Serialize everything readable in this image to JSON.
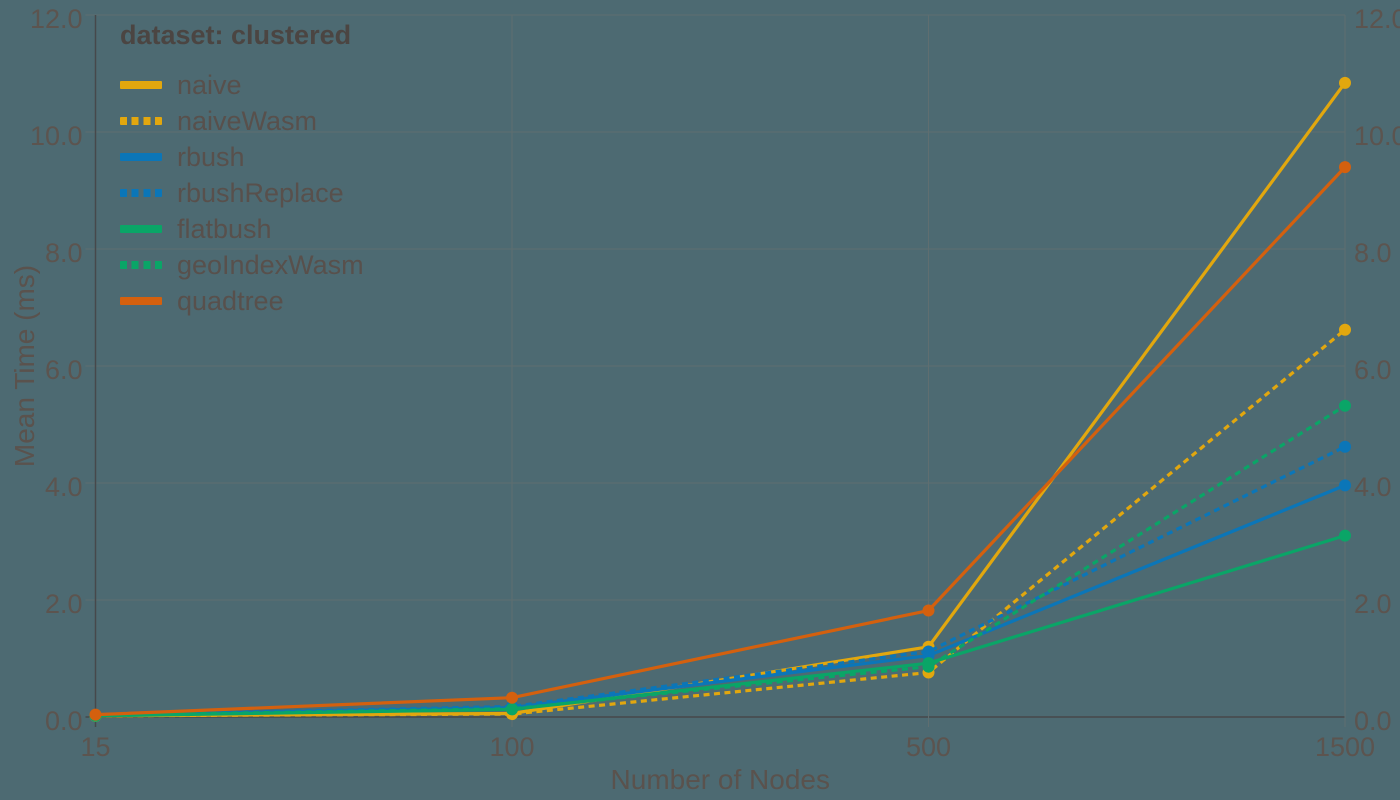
{
  "chart_data": {
    "type": "line",
    "title": "",
    "legend_title": "dataset: clustered",
    "xlabel": "Number of Nodes",
    "ylabel": "Mean Time (ms)",
    "x_categories": [
      "15",
      "100",
      "500",
      "1500"
    ],
    "y_tick_values": [
      0,
      2,
      4,
      6,
      8,
      10,
      12
    ],
    "y_tick_labels": [
      "0.0",
      "2.0",
      "4.0",
      "6.0",
      "8.0",
      "10.0",
      "12.0"
    ],
    "ylim": [
      0,
      12
    ],
    "grid": true,
    "legend_position": "top-left",
    "y_axis_labels_sides": "left and right",
    "marker": "circle",
    "series": [
      {
        "name": "naive",
        "color": "#E2A70E",
        "line_style": "solid",
        "values": [
          0.02,
          0.06,
          1.2,
          10.84
        ]
      },
      {
        "name": "naiveWasm",
        "color": "#E2A70E",
        "line_style": "dashed",
        "values": [
          0.02,
          0.05,
          0.76,
          6.62
        ]
      },
      {
        "name": "rbush",
        "color": "#0B76B8",
        "line_style": "solid",
        "values": [
          0.03,
          0.16,
          1.05,
          3.96
        ]
      },
      {
        "name": "rbushReplace",
        "color": "#0B76B8",
        "line_style": "dashed",
        "values": [
          0.03,
          0.18,
          1.12,
          4.62
        ]
      },
      {
        "name": "flatbush",
        "color": "#0AA567",
        "line_style": "solid",
        "values": [
          0.02,
          0.13,
          0.92,
          3.1
        ]
      },
      {
        "name": "geoIndexWasm",
        "color": "#0AA567",
        "line_style": "dashed",
        "values": [
          0.03,
          0.14,
          0.86,
          5.32
        ]
      },
      {
        "name": "quadtree",
        "color": "#D4600E",
        "line_style": "solid",
        "values": [
          0.04,
          0.33,
          1.82,
          9.4
        ]
      }
    ]
  },
  "theme": {
    "background": "#4D6A72",
    "gridline": "#5F6E70",
    "axis": "#46484B",
    "tick_label_color": "#5C544F",
    "axis_title_color": "#5A524D",
    "legend_title_color": "#4B4542",
    "legend_label_color": "#58504C"
  }
}
